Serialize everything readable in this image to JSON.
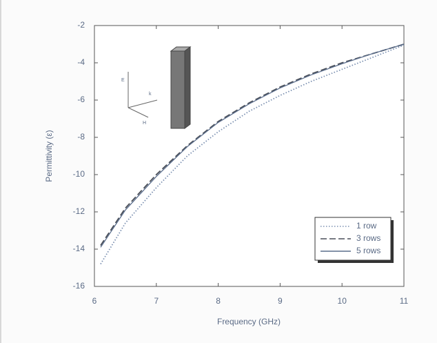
{
  "chart_data": {
    "type": "line",
    "xlabel": "Frequency (GHz)",
    "ylabel": "Permittivity (ε)",
    "x": [
      6.1,
      6.5,
      7,
      7.5,
      8,
      8.5,
      9,
      9.5,
      10,
      10.5,
      11
    ],
    "series": [
      {
        "name": "1 row",
        "color": "#7a8fb0",
        "dash": "dotted",
        "values": [
          -14.8,
          -12.6,
          -10.7,
          -9.0,
          -7.7,
          -6.6,
          -5.75,
          -5.0,
          -4.35,
          -3.7,
          -3.05
        ]
      },
      {
        "name": "3 rows",
        "color": "#4a4f58",
        "dash": "dashed",
        "values": [
          -13.8,
          -11.8,
          -10.0,
          -8.45,
          -7.15,
          -6.15,
          -5.3,
          -4.6,
          -4.0,
          -3.5,
          -3.0
        ]
      },
      {
        "name": "5 rows",
        "color": "#5a6d8c",
        "dash": "solid",
        "values": [
          -13.9,
          -11.9,
          -10.1,
          -8.5,
          -7.2,
          -6.2,
          -5.35,
          -4.65,
          -4.05,
          -3.5,
          -3.0
        ]
      }
    ],
    "xlim": [
      6,
      11
    ],
    "xticks": [
      6,
      7,
      8,
      9,
      10,
      11
    ],
    "ylim": [
      -16,
      -2
    ],
    "yticks": [
      -16,
      -14,
      -12,
      -10,
      -8,
      -6,
      -4,
      -2
    ],
    "legend": "lower-right",
    "grid": false,
    "annotations": [
      "E",
      "k",
      "H"
    ]
  }
}
